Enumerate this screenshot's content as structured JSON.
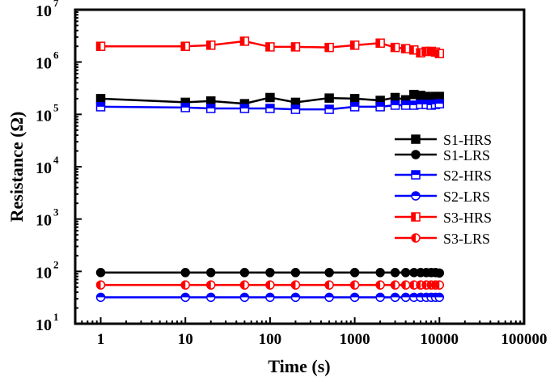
{
  "chart_data": {
    "type": "line",
    "title": "",
    "xlabel": "Time (s)",
    "ylabel": "Resistance (Ω)",
    "xscale": "log",
    "yscale": "log",
    "xlim": [
      0.5,
      100000
    ],
    "ylim": [
      10,
      10000000
    ],
    "x_ticks": [
      "1",
      "10",
      "100",
      "1000",
      "10000",
      "100000"
    ],
    "y_ticks": [
      {
        "base": "10",
        "exp": "1"
      },
      {
        "base": "10",
        "exp": "2"
      },
      {
        "base": "10",
        "exp": "3"
      },
      {
        "base": "10",
        "exp": "4"
      },
      {
        "base": "10",
        "exp": "5"
      },
      {
        "base": "10",
        "exp": "6"
      },
      {
        "base": "10",
        "exp": "7"
      }
    ],
    "grid": false,
    "legend_position": "right-center",
    "x": [
      1,
      10,
      20,
      50,
      100,
      200,
      500,
      1000,
      2000,
      3000,
      4000,
      5000,
      6000,
      7000,
      8000,
      9000,
      10000
    ],
    "series": [
      {
        "name": "S1-HRS",
        "color": "#000000",
        "marker": "square-filled",
        "values": [
          200000,
          170000,
          180000,
          160000,
          210000,
          170000,
          205000,
          200000,
          185000,
          210000,
          190000,
          240000,
          230000,
          220000,
          200000,
          220000,
          220000
        ]
      },
      {
        "name": "S1-LRS",
        "color": "#000000",
        "marker": "circle-filled",
        "values": [
          95,
          95,
          95,
          95,
          95,
          95,
          95,
          95,
          95,
          95,
          95,
          95,
          95,
          95,
          95,
          95,
          93
        ]
      },
      {
        "name": "S2-HRS",
        "color": "#0000ff",
        "marker": "square-top-half",
        "values": [
          140000,
          135000,
          130000,
          130000,
          130000,
          125000,
          125000,
          140000,
          140000,
          150000,
          150000,
          150000,
          155000,
          155000,
          150000,
          155000,
          160000
        ]
      },
      {
        "name": "S2-LRS",
        "color": "#0000ff",
        "marker": "circle-top-half",
        "values": [
          32,
          32,
          32,
          32,
          32,
          32,
          32,
          32,
          32,
          32,
          32,
          32,
          32,
          32,
          32,
          32,
          32
        ]
      },
      {
        "name": "S3-HRS",
        "color": "#ff0000",
        "marker": "square-left-half",
        "values": [
          2000000,
          2000000,
          2100000,
          2500000,
          1950000,
          1950000,
          1900000,
          2100000,
          2300000,
          1900000,
          1800000,
          1700000,
          1500000,
          1600000,
          1600000,
          1550000,
          1450000
        ]
      },
      {
        "name": "S3-LRS",
        "color": "#ff0000",
        "marker": "circle-left-half",
        "values": [
          55,
          55,
          55,
          55,
          55,
          55,
          55,
          55,
          55,
          55,
          55,
          55,
          55,
          55,
          55,
          55,
          55
        ]
      }
    ]
  }
}
